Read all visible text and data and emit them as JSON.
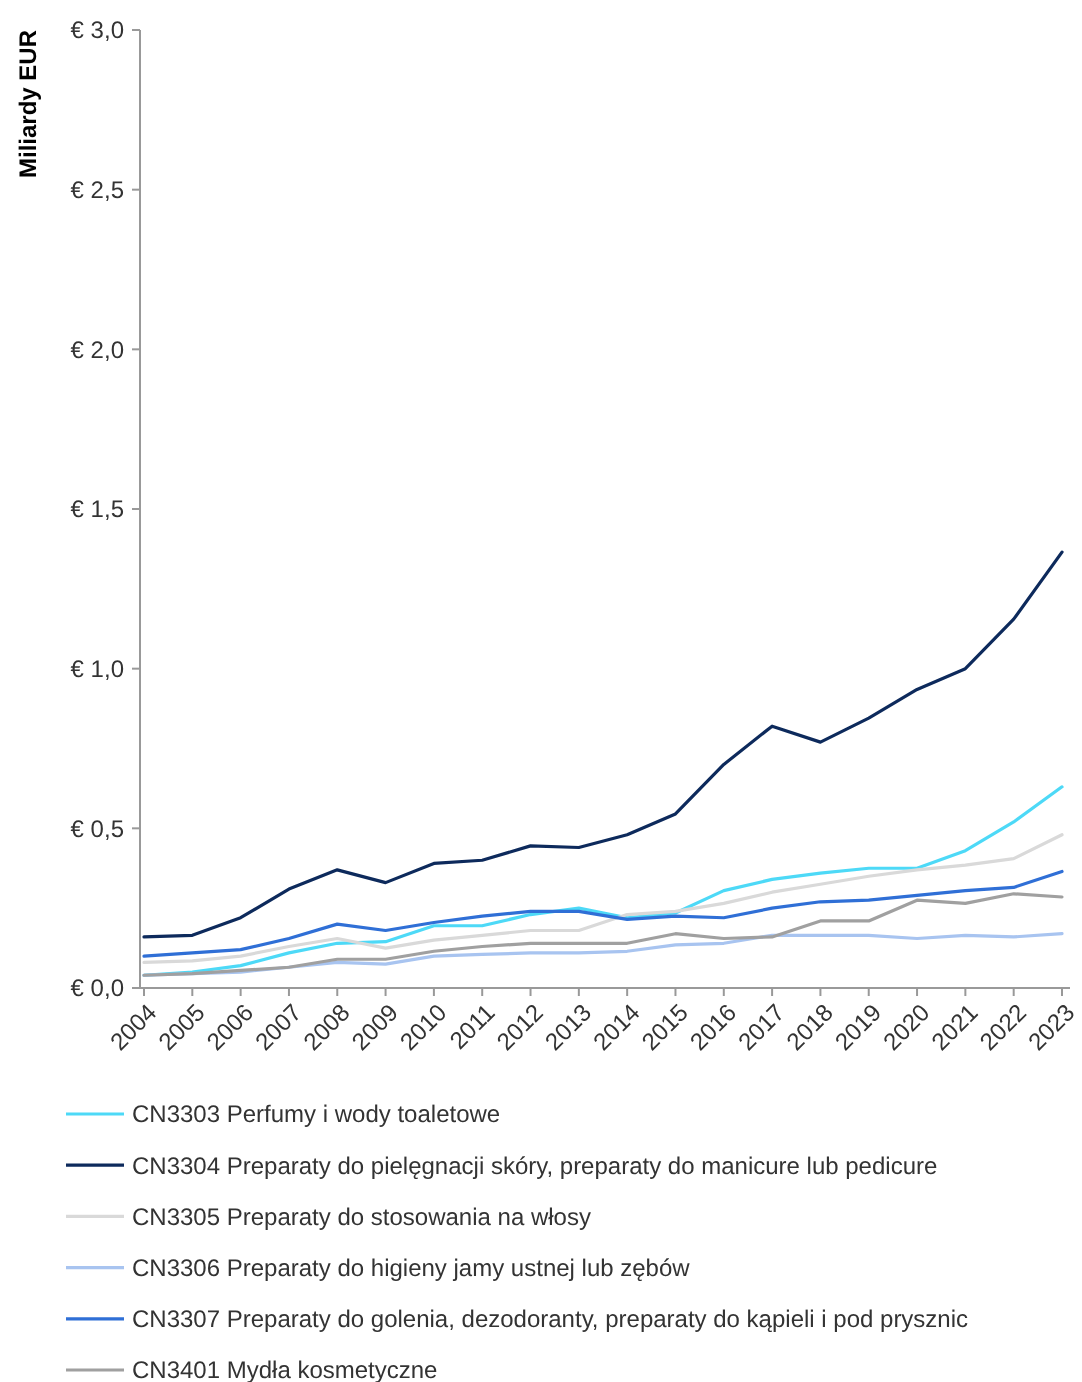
{
  "chart_data": {
    "type": "line",
    "ylabel": "Miliardy EUR",
    "categories": [
      "2004",
      "2005",
      "2006",
      "2007",
      "2008",
      "2009",
      "2010",
      "2011",
      "2012",
      "2013",
      "2014",
      "2015",
      "2016",
      "2017",
      "2018",
      "2019",
      "2020",
      "2021",
      "2022",
      "2023"
    ],
    "ylim": [
      0,
      3
    ],
    "yticks": [
      {
        "value": 0,
        "label": "€ 0,0"
      },
      {
        "value": 0.5,
        "label": "€ 0,5"
      },
      {
        "value": 1,
        "label": "€ 1,0"
      },
      {
        "value": 1.5,
        "label": "€ 1,5"
      },
      {
        "value": 2,
        "label": "€ 2,0"
      },
      {
        "value": 2.5,
        "label": "€ 2,5"
      },
      {
        "value": 3,
        "label": "€ 3,0"
      }
    ],
    "grid": false,
    "legend": "bottom",
    "marker": "none",
    "line_style": "solid",
    "series": [
      {
        "name": "CN3303 Perfumy i wody toaletowe",
        "color": "#4dd9f7",
        "values": [
          0.04,
          0.05,
          0.07,
          0.11,
          0.14,
          0.145,
          0.195,
          0.195,
          0.23,
          0.25,
          0.22,
          0.235,
          0.305,
          0.34,
          0.36,
          0.375,
          0.375,
          0.43,
          0.52,
          0.63
        ]
      },
      {
        "name": "CN3304 Preparaty do pielęgnacji skóry, preparaty do manicure lub pedicure",
        "color": "#0d2a5c",
        "values": [
          0.16,
          0.165,
          0.22,
          0.31,
          0.37,
          0.33,
          0.39,
          0.4,
          0.445,
          0.44,
          0.48,
          0.545,
          0.7,
          0.82,
          0.77,
          0.845,
          0.935,
          1.0,
          1.155,
          1.365
        ]
      },
      {
        "name": "CN3305 Preparaty do stosowania na włosy",
        "color": "#d9d9d9",
        "values": [
          0.08,
          0.085,
          0.1,
          0.13,
          0.155,
          0.125,
          0.15,
          0.165,
          0.18,
          0.18,
          0.23,
          0.24,
          0.265,
          0.3,
          0.325,
          0.35,
          0.37,
          0.385,
          0.405,
          0.48
        ]
      },
      {
        "name": "CN3306 Preparaty do higieny jamy ustnej lub zębów",
        "color": "#a8c4f0",
        "values": [
          0.04,
          0.045,
          0.05,
          0.065,
          0.08,
          0.075,
          0.1,
          0.105,
          0.11,
          0.11,
          0.115,
          0.135,
          0.14,
          0.165,
          0.165,
          0.165,
          0.155,
          0.165,
          0.16,
          0.17
        ]
      },
      {
        "name": "CN3307 Preparaty do golenia, dezodoranty, preparaty do kąpieli i pod prysznic",
        "color": "#2f6fd6",
        "values": [
          0.1,
          0.11,
          0.12,
          0.155,
          0.2,
          0.18,
          0.205,
          0.225,
          0.24,
          0.24,
          0.215,
          0.225,
          0.22,
          0.25,
          0.27,
          0.275,
          0.29,
          0.305,
          0.315,
          0.365
        ]
      },
      {
        "name": "CN3401 Mydła kosmetyczne",
        "color": "#a0a0a0",
        "values": [
          0.04,
          0.045,
          0.055,
          0.065,
          0.09,
          0.09,
          0.115,
          0.13,
          0.14,
          0.14,
          0.14,
          0.17,
          0.155,
          0.16,
          0.21,
          0.21,
          0.275,
          0.265,
          0.295,
          0.285
        ]
      }
    ]
  }
}
